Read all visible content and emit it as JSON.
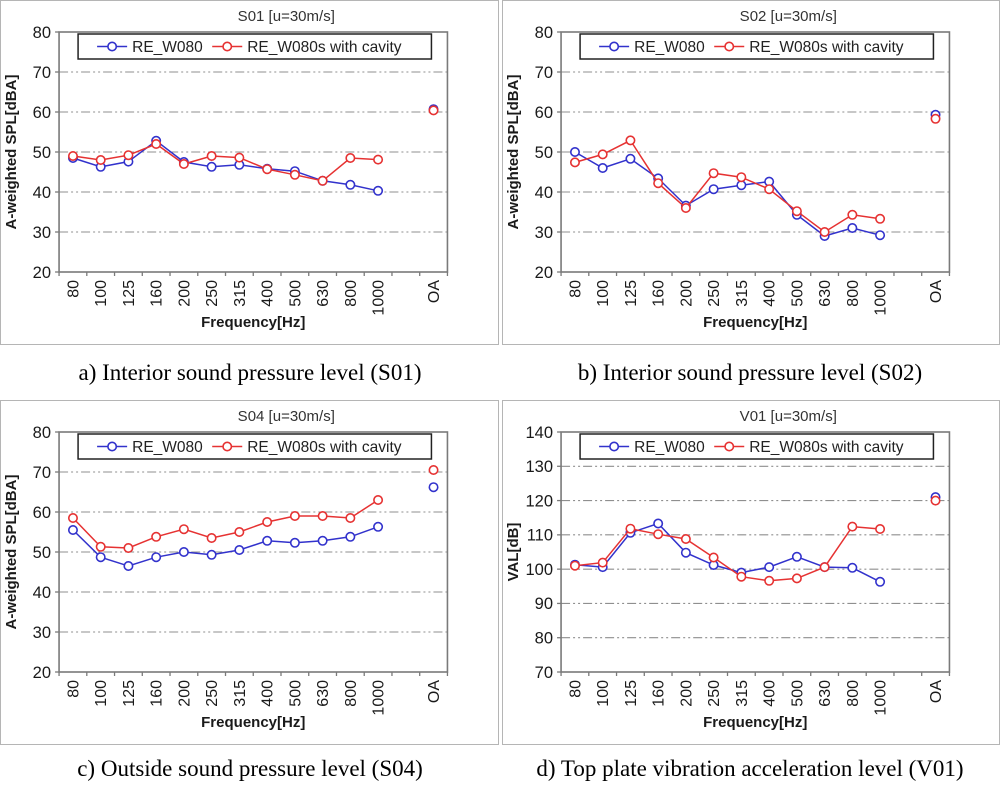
{
  "style": {
    "series1_color": "#3232cc",
    "series2_color": "#e63232",
    "grid_color": "#8f8f8f",
    "axis_color": "#7a7a7a",
    "tick_label_color": "#1a1a1a",
    "title_color": "#333333",
    "legend_border_color": "#222222",
    "panel_border_color": "#b5b5b5"
  },
  "legend": {
    "items": [
      {
        "label": "RE_W080",
        "color": "#3232cc"
      },
      {
        "label": "RE_W080s with cavity",
        "color": "#e63232"
      }
    ]
  },
  "chart_data": [
    {
      "type": "line",
      "title": "S01  [u=30m/s]",
      "caption": "a) Interior sound pressure level (S01)",
      "xlabel": "Frequency[Hz]",
      "ylabel": "A-weighted SPL[dBA]",
      "ylim": [
        20,
        80
      ],
      "yticks": [
        20,
        30,
        40,
        50,
        60,
        70,
        80
      ],
      "grid": "horizontal dash-dot",
      "legend_position": "top-inside",
      "categories": [
        "80",
        "100",
        "125",
        "160",
        "200",
        "250",
        "315",
        "400",
        "500",
        "630",
        "800",
        "1000",
        "",
        "OA"
      ],
      "series": [
        {
          "name": "RE_W080",
          "color": "#3232cc",
          "values": [
            48.5,
            46.3,
            47.6,
            52.8,
            47.5,
            46.3,
            46.8,
            45.8,
            45.2,
            42.8,
            41.8,
            40.3,
            null,
            60.7
          ]
        },
        {
          "name": "RE_W080s with cavity",
          "color": "#e63232",
          "values": [
            49.0,
            48.0,
            49.2,
            52.0,
            47.0,
            49.0,
            48.6,
            45.7,
            44.3,
            42.8,
            48.5,
            48.1,
            null,
            60.4
          ]
        }
      ]
    },
    {
      "type": "line",
      "title": "S02  [u=30m/s]",
      "caption": "b) Interior sound pressure level (S02)",
      "xlabel": "Frequency[Hz]",
      "ylabel": "A-weighted SPL[dBA]",
      "ylim": [
        20,
        80
      ],
      "yticks": [
        20,
        30,
        40,
        50,
        60,
        70,
        80
      ],
      "grid": "horizontal dash-dot",
      "legend_position": "top-inside",
      "categories": [
        "80",
        "100",
        "125",
        "160",
        "200",
        "250",
        "315",
        "400",
        "500",
        "630",
        "800",
        "1000",
        "",
        "OA"
      ],
      "series": [
        {
          "name": "RE_W080",
          "color": "#3232cc",
          "values": [
            50.0,
            46.0,
            48.3,
            43.4,
            36.6,
            40.7,
            41.7,
            42.6,
            34.3,
            29.0,
            31.0,
            29.2,
            null,
            59.3
          ]
        },
        {
          "name": "RE_W080s with cavity",
          "color": "#e63232",
          "values": [
            47.4,
            49.4,
            52.9,
            42.2,
            36.0,
            44.7,
            43.7,
            40.7,
            35.2,
            30.0,
            34.3,
            33.3,
            null,
            58.3
          ]
        }
      ]
    },
    {
      "type": "line",
      "title": "S04  [u=30m/s]",
      "caption": "c) Outside sound pressure level (S04)",
      "xlabel": "Frequency[Hz]",
      "ylabel": "A-weighted SPL[dBA]",
      "ylim": [
        20,
        80
      ],
      "yticks": [
        20,
        30,
        40,
        50,
        60,
        70,
        80
      ],
      "grid": "horizontal dash-dot",
      "legend_position": "top-inside",
      "categories": [
        "80",
        "100",
        "125",
        "160",
        "200",
        "250",
        "315",
        "400",
        "500",
        "630",
        "800",
        "1000",
        "",
        "OA"
      ],
      "series": [
        {
          "name": "RE_W080",
          "color": "#3232cc",
          "values": [
            55.5,
            48.7,
            46.5,
            48.7,
            50.0,
            49.3,
            50.5,
            52.8,
            52.3,
            52.8,
            53.8,
            56.3,
            null,
            66.2
          ]
        },
        {
          "name": "RE_W080s with cavity",
          "color": "#e63232",
          "values": [
            58.5,
            51.3,
            51.0,
            53.8,
            55.7,
            53.5,
            55.0,
            57.5,
            59.0,
            59.0,
            58.5,
            63.0,
            null,
            70.5
          ]
        }
      ]
    },
    {
      "type": "line",
      "title": "V01  [u=30m/s]",
      "caption": "d) Top plate vibration acceleration level (V01)",
      "xlabel": "Frequency[Hz]",
      "ylabel": "VAL[dB]",
      "ylim": [
        70,
        140
      ],
      "yticks": [
        70,
        80,
        90,
        100,
        110,
        120,
        130,
        140
      ],
      "grid": "horizontal dash-dot",
      "legend_position": "top-inside",
      "categories": [
        "80",
        "100",
        "125",
        "160",
        "200",
        "250",
        "315",
        "400",
        "500",
        "630",
        "800",
        "1000",
        "",
        "OA"
      ],
      "series": [
        {
          "name": "RE_W080",
          "color": "#3232cc",
          "values": [
            101.3,
            100.6,
            110.6,
            113.3,
            104.8,
            101.2,
            99.0,
            100.6,
            103.6,
            100.6,
            100.4,
            96.3,
            null,
            121.0
          ]
        },
        {
          "name": "RE_W080s with cavity",
          "color": "#e63232",
          "values": [
            101.0,
            101.9,
            111.8,
            110.2,
            108.8,
            103.4,
            97.8,
            96.6,
            97.3,
            100.6,
            112.4,
            111.7,
            null,
            120.0
          ]
        }
      ]
    }
  ]
}
